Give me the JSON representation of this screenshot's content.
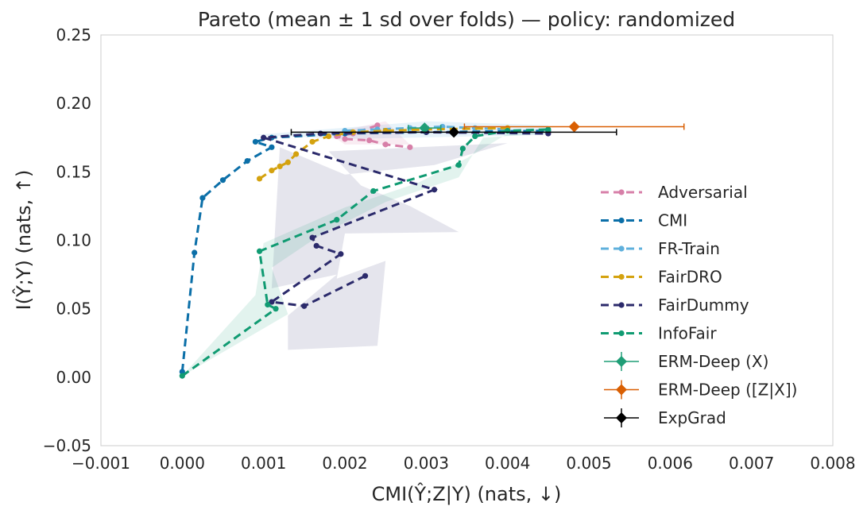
{
  "chart_data": {
    "type": "scatter",
    "title": "Pareto (mean ± 1 sd over folds) — policy: randomized",
    "xlabel": "CMI(Ŷ;Z|Y) (nats, ↓)",
    "ylabel": "I(Ŷ;Y) (nats, ↑)",
    "xlim": [
      -0.001,
      0.008
    ],
    "ylim": [
      -0.05,
      0.25
    ],
    "xticks": [
      -0.001,
      0.0,
      0.001,
      0.002,
      0.003,
      0.004,
      0.005,
      0.006,
      0.007,
      0.008
    ],
    "xtick_labels": [
      "−0.001",
      "0.000",
      "0.001",
      "0.002",
      "0.003",
      "0.004",
      "0.005",
      "0.006",
      "0.007",
      "0.008"
    ],
    "yticks": [
      -0.05,
      0.0,
      0.05,
      0.1,
      0.15,
      0.2,
      0.25
    ],
    "ytick_labels": [
      "−0.05",
      "0.00",
      "0.05",
      "0.10",
      "0.15",
      "0.20",
      "0.25"
    ],
    "grid": false,
    "legend_position": "right",
    "series": [
      {
        "name": "Adversarial",
        "color": "#d77fa8",
        "style": "dashed-line-markers",
        "points": [
          [
            0.0024,
            0.184
          ],
          [
            0.0021,
            0.178
          ],
          [
            0.0019,
            0.176
          ],
          [
            0.002,
            0.174
          ],
          [
            0.0023,
            0.173
          ],
          [
            0.0025,
            0.17
          ],
          [
            0.0028,
            0.168
          ]
        ]
      },
      {
        "name": "CMI",
        "color": "#0b6fa8",
        "style": "dashed-line-markers",
        "points": [
          [
            0.0,
            0.004
          ],
          [
            0.00015,
            0.091
          ],
          [
            0.00025,
            0.131
          ],
          [
            0.0005,
            0.144
          ],
          [
            0.0008,
            0.158
          ],
          [
            0.0011,
            0.168
          ],
          [
            0.0009,
            0.172
          ],
          [
            0.0011,
            0.175
          ],
          [
            0.002,
            0.178
          ],
          [
            0.003,
            0.179
          ],
          [
            0.0045,
            0.18
          ]
        ]
      },
      {
        "name": "FR-Train",
        "color": "#5fb0dc",
        "style": "dashed-line-markers",
        "points": [
          [
            0.002,
            0.18
          ],
          [
            0.0024,
            0.181
          ],
          [
            0.0028,
            0.182
          ],
          [
            0.0032,
            0.183
          ],
          [
            0.0036,
            0.182
          ],
          [
            0.004,
            0.181
          ]
        ]
      },
      {
        "name": "FairDRO",
        "color": "#d4a20f",
        "style": "dashed-line-markers",
        "points": [
          [
            0.00095,
            0.145
          ],
          [
            0.0011,
            0.151
          ],
          [
            0.0012,
            0.154
          ],
          [
            0.0013,
            0.157
          ],
          [
            0.0014,
            0.163
          ],
          [
            0.0016,
            0.172
          ],
          [
            0.0018,
            0.176
          ],
          [
            0.0021,
            0.179
          ],
          [
            0.0025,
            0.18
          ],
          [
            0.003,
            0.181
          ],
          [
            0.004,
            0.182
          ]
        ]
      },
      {
        "name": "FairDummy",
        "color": "#2b2a6b",
        "style": "dashed-line-markers",
        "points": [
          [
            0.00225,
            0.074
          ],
          [
            0.0015,
            0.052
          ],
          [
            0.0011,
            0.055
          ],
          [
            0.00195,
            0.09
          ],
          [
            0.00165,
            0.096
          ],
          [
            0.0016,
            0.102
          ],
          [
            0.0031,
            0.137
          ],
          [
            0.001,
            0.175
          ],
          [
            0.0017,
            0.178
          ],
          [
            0.003,
            0.179
          ],
          [
            0.0045,
            0.178
          ]
        ]
      },
      {
        "name": "InfoFair",
        "color": "#109b72",
        "style": "dashed-line-markers",
        "points": [
          [
            0.0,
            0.001
          ],
          [
            0.00115,
            0.05
          ],
          [
            0.00105,
            0.053
          ],
          [
            0.00095,
            0.092
          ],
          [
            0.0019,
            0.115
          ],
          [
            0.00235,
            0.136
          ],
          [
            0.0034,
            0.155
          ],
          [
            0.00345,
            0.167
          ],
          [
            0.0036,
            0.176
          ],
          [
            0.004,
            0.18
          ],
          [
            0.0045,
            0.181
          ]
        ]
      },
      {
        "name": "ERM-Deep (X)",
        "color": "#1f9e77",
        "style": "errorbar-diamond",
        "points": [
          [
            0.00298,
            0.182
          ]
        ],
        "xerr": [
          0.0002
        ],
        "yerr": [
          0.002
        ]
      },
      {
        "name": "ERM-Deep ([Z|X])",
        "color": "#d95f02",
        "style": "errorbar-diamond",
        "points": [
          [
            0.00482,
            0.183
          ]
        ],
        "xerr": [
          0.00135
        ],
        "yerr": [
          0.002
        ]
      },
      {
        "name": "ExpGrad",
        "color": "#000000",
        "style": "errorbar-diamond",
        "points": [
          [
            0.00334,
            0.179
          ]
        ],
        "xerr": [
          0.002
        ],
        "yerr": [
          0.003
        ]
      }
    ],
    "bands": [
      {
        "series": "FairDummy",
        "color": "#2b2a6b",
        "opacity": 0.12,
        "points": [
          [
            0.0013,
            0.02
          ],
          [
            0.0024,
            0.023
          ],
          [
            0.0025,
            0.085
          ],
          [
            0.0019,
            0.072
          ],
          [
            0.002,
            0.105
          ],
          [
            0.0034,
            0.106
          ],
          [
            0.0028,
            0.125
          ],
          [
            0.0022,
            0.14
          ],
          [
            0.0018,
            0.165
          ],
          [
            0.004,
            0.171
          ],
          [
            0.0031,
            0.155
          ],
          [
            0.002,
            0.148
          ],
          [
            0.0012,
            0.168
          ],
          [
            0.0011,
            0.065
          ],
          [
            0.0019,
            0.075
          ],
          [
            0.0013,
            0.045
          ]
        ]
      },
      {
        "series": "InfoFair",
        "color": "#109b72",
        "opacity": 0.12,
        "points": [
          [
            0.0,
            0.001
          ],
          [
            0.0009,
            0.06
          ],
          [
            0.001,
            0.098
          ],
          [
            0.002,
            0.124
          ],
          [
            0.0029,
            0.142
          ],
          [
            0.0035,
            0.16
          ],
          [
            0.004,
            0.178
          ],
          [
            0.0045,
            0.182
          ],
          [
            0.0045,
            0.178
          ],
          [
            0.0037,
            0.175
          ],
          [
            0.0034,
            0.146
          ],
          [
            0.0025,
            0.128
          ],
          [
            0.0017,
            0.104
          ],
          [
            0.0011,
            0.08
          ],
          [
            0.0013,
            0.046
          ]
        ]
      },
      {
        "series": "FR-Train",
        "color": "#5fb0dc",
        "opacity": 0.15,
        "points": [
          [
            0.0009,
            0.177
          ],
          [
            0.003,
            0.187
          ],
          [
            0.0045,
            0.184
          ],
          [
            0.0045,
            0.177
          ],
          [
            0.002,
            0.174
          ]
        ]
      },
      {
        "series": "Adversarial",
        "color": "#d77fa8",
        "opacity": 0.15,
        "points": [
          [
            0.0018,
            0.178
          ],
          [
            0.0025,
            0.187
          ],
          [
            0.0028,
            0.17
          ],
          [
            0.002,
            0.17
          ]
        ]
      }
    ]
  }
}
